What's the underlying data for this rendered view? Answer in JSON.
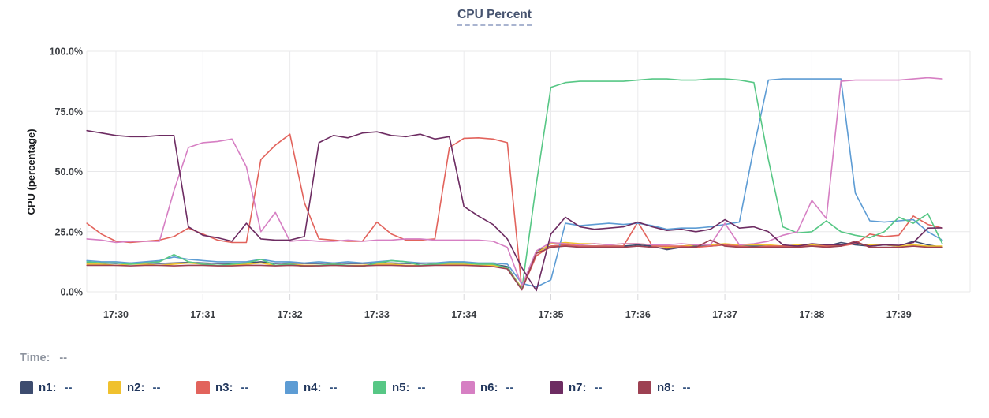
{
  "title": {
    "text": "CPU Percent"
  },
  "time_row": {
    "label": "Time:",
    "value": "--"
  },
  "legend": {
    "items": [
      {
        "name": "n1",
        "label": "n1:",
        "value": "--"
      },
      {
        "name": "n2",
        "label": "n2:",
        "value": "--"
      },
      {
        "name": "n3",
        "label": "n3:",
        "value": "--"
      },
      {
        "name": "n4",
        "label": "n4:",
        "value": "--"
      },
      {
        "name": "n5",
        "label": "n5:",
        "value": "--"
      },
      {
        "name": "n6",
        "label": "n6:",
        "value": "--"
      },
      {
        "name": "n7",
        "label": "n7:",
        "value": "--"
      },
      {
        "name": "n8",
        "label": "n8:",
        "value": "--"
      }
    ]
  },
  "chart_data": {
    "type": "line",
    "title": "CPU Percent",
    "xlabel": "",
    "ylabel": "CPU (percentage)",
    "ylim": [
      0,
      100
    ],
    "grid": true,
    "legend_position": "bottom",
    "x_ticks": [
      "17:30",
      "17:31",
      "17:32",
      "17:33",
      "17:34",
      "17:35",
      "17:36",
      "17:37",
      "17:38",
      "17:39"
    ],
    "y_ticks": [
      "0.0%",
      "25.0%",
      "50.0%",
      "75.0%",
      "100.0%"
    ],
    "y_grid_values": [
      0,
      25,
      50,
      75,
      100
    ],
    "x_start_seconds": -20,
    "sample_interval_seconds": 10,
    "series": [
      {
        "name": "n1",
        "color": "#3d4c6f",
        "values": [
          12,
          12,
          11.8,
          12,
          12,
          11.8,
          12,
          12.2,
          12,
          11.8,
          11.8,
          12,
          12.5,
          11.8,
          12,
          11.8,
          11.8,
          12,
          11.8,
          11.8,
          12,
          12,
          11.8,
          11.8,
          12,
          12,
          12,
          11.8,
          11.5,
          10.5,
          1,
          17,
          19,
          19.5,
          19,
          19,
          19,
          19,
          19.5,
          19,
          17.5,
          18.5,
          19,
          19,
          19.5,
          19,
          19,
          19,
          19,
          19,
          19.5,
          19,
          20.5,
          19.5,
          19,
          19.5,
          19,
          21,
          19.5,
          18.5
        ]
      },
      {
        "name": "n2",
        "color": "#f0c12e",
        "values": [
          11.5,
          11.5,
          11,
          11.5,
          11.5,
          11,
          11.5,
          12,
          11.5,
          11,
          11,
          11.5,
          12,
          11,
          11.5,
          11,
          11,
          11.5,
          11,
          11,
          11.5,
          11.5,
          11,
          11,
          11.5,
          11.5,
          11.5,
          11,
          11,
          10,
          1.5,
          16,
          20,
          20.5,
          20,
          20,
          19.5,
          20,
          20,
          19.5,
          18.5,
          19,
          19.5,
          19.5,
          20,
          19.5,
          19.5,
          19.5,
          19,
          19.5,
          19.5,
          19,
          19.5,
          20,
          19.5,
          19.5,
          19,
          19.5,
          19,
          19
        ]
      },
      {
        "name": "n3",
        "color": "#e2635c",
        "values": [
          28.5,
          24,
          21,
          20.5,
          21,
          21.5,
          23,
          26.5,
          24,
          21.5,
          20.5,
          20.5,
          55,
          61,
          65.5,
          37,
          22,
          21.5,
          21,
          21,
          29,
          24,
          21.5,
          21.5,
          22,
          60,
          63.8,
          64,
          63.5,
          62,
          1,
          15,
          19,
          19.5,
          19,
          19,
          19,
          19,
          29,
          19,
          19,
          19,
          18.5,
          19,
          19.5,
          19,
          18.5,
          19,
          19,
          19,
          19,
          19,
          19,
          20,
          24,
          23,
          23.5,
          31.5,
          28,
          26.5
        ]
      },
      {
        "name": "n4",
        "color": "#5d9cd4",
        "values": [
          13,
          12.5,
          12.5,
          12,
          12.5,
          13,
          14.5,
          13.5,
          13,
          12.5,
          12.5,
          12.5,
          13.5,
          12.5,
          12.5,
          12,
          12.5,
          12,
          12.5,
          12,
          12.5,
          13,
          12.5,
          12,
          12,
          12.5,
          12.5,
          12,
          12,
          11.5,
          3.5,
          2,
          5,
          28.5,
          27.5,
          28,
          28.5,
          28,
          28.5,
          27.5,
          26,
          26.5,
          26.5,
          27,
          28,
          29,
          60,
          88,
          88.5,
          88.5,
          88.5,
          88.5,
          88.5,
          41,
          29.5,
          29,
          29.5,
          30,
          25,
          21.5
        ]
      },
      {
        "name": "n5",
        "color": "#57c785",
        "values": [
          12.5,
          12,
          12,
          11.5,
          12,
          12.5,
          15.5,
          12.5,
          11.5,
          11,
          11.5,
          12,
          13.5,
          11,
          11.5,
          10.5,
          11,
          11.5,
          11,
          10.5,
          12,
          13,
          12.5,
          11,
          11.5,
          12,
          12,
          11.5,
          11.5,
          10,
          1,
          45,
          85,
          87,
          87.5,
          87.5,
          87.5,
          87.5,
          88,
          88.5,
          88.5,
          88,
          88,
          88.5,
          88.5,
          88,
          87,
          55,
          27,
          24.5,
          25,
          29.5,
          25,
          23.5,
          22.5,
          25,
          31,
          28.5,
          32.5,
          20
        ]
      },
      {
        "name": "n6",
        "color": "#d67fc3",
        "values": [
          22,
          21.5,
          20.5,
          21,
          21,
          21,
          42,
          60,
          62,
          62.5,
          63.5,
          52,
          25,
          33,
          21,
          21.5,
          21,
          21,
          21.5,
          21,
          21.5,
          21.5,
          22,
          22,
          21.5,
          21.5,
          21.5,
          21.5,
          21,
          18.5,
          2.5,
          17,
          20.5,
          20,
          19.5,
          20,
          19.5,
          20,
          20,
          19.5,
          19.5,
          20,
          19.5,
          19.5,
          28.5,
          19.5,
          20,
          21,
          23.5,
          25,
          38,
          30.5,
          87.5,
          88,
          88,
          88,
          88,
          88.5,
          89,
          88.5
        ]
      },
      {
        "name": "n7",
        "color": "#6d2c62",
        "values": [
          67,
          66,
          65,
          64.5,
          64.5,
          65,
          65,
          27,
          23.5,
          22.5,
          21,
          28.5,
          22,
          21.5,
          21.5,
          23,
          62,
          65,
          64,
          66,
          66.5,
          65,
          64.5,
          65.5,
          63.5,
          64.5,
          35.5,
          31.5,
          28,
          22,
          10,
          0.5,
          24,
          31,
          27,
          26,
          26.5,
          27,
          29,
          27,
          25.5,
          26,
          25,
          26,
          30,
          26.5,
          27,
          25,
          19.5,
          19,
          20,
          19.5,
          19.5,
          20.5,
          19,
          19.5,
          19.3,
          20.5,
          26.5,
          26.6
        ]
      },
      {
        "name": "n8",
        "color": "#9d4152",
        "values": [
          11,
          11,
          11,
          10.8,
          11,
          11,
          10.8,
          11,
          11,
          10.8,
          10.8,
          11,
          11,
          10.8,
          11,
          10.8,
          10.8,
          11,
          10.8,
          10.8,
          11,
          11,
          10.8,
          10.8,
          11,
          11,
          11,
          10.8,
          10.5,
          9.5,
          0.8,
          16,
          18.5,
          19,
          18.5,
          18.5,
          18.5,
          18.5,
          19,
          18.5,
          18,
          18.5,
          18.5,
          21.5,
          19,
          18.5,
          18.5,
          18.5,
          18.5,
          18.5,
          19,
          18.5,
          19,
          21,
          18.5,
          18.5,
          18.5,
          19,
          18.5,
          18.5
        ]
      }
    ]
  }
}
